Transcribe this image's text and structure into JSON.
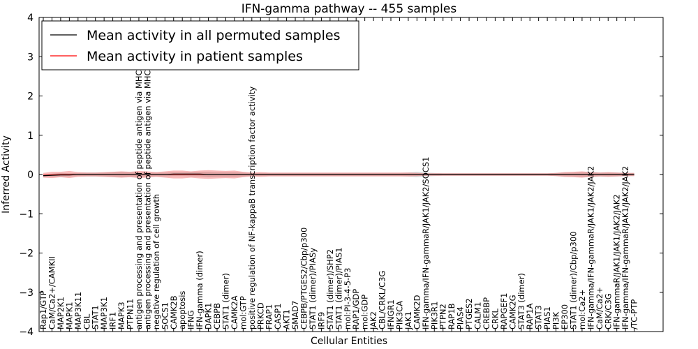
{
  "chart_data": {
    "type": "line",
    "title": "IFN-gamma pathway -- 455 samples",
    "xlabel": "Cellular Entities",
    "ylabel": "Inferred Activity",
    "ylim": [
      -4,
      4
    ],
    "yticks": [
      -4,
      -3,
      -2,
      -1,
      0,
      1,
      2,
      3,
      4
    ],
    "ytick_labels": [
      "−4",
      "−3",
      "−2",
      "−1",
      "0",
      "1",
      "2",
      "3",
      "4"
    ],
    "legend_position": "top-left",
    "categories": [
      "Rap1/GTP",
      "CaM/Ca2+/CAMKII",
      "MAP2K1",
      "MAPK1",
      "MAP3K11",
      "CBL",
      "STAT1",
      "MAP3K1",
      "IRF1",
      "MAPK3",
      "PTPN11",
      "antigen processing and presentation of peptide antigen via MHC class I",
      "antigen processing and presentation of peptide antigen via MHC class II",
      "negative regulation of cell growth",
      "SOCS1",
      "CAMK2B",
      "apoptosis",
      "IFNG",
      "IFN-gamma (dimer)",
      "DAPK1",
      "CEBPB",
      "STAT1 (dimer)",
      "CAMK2A",
      "mol:GTP",
      "positive regulation of NF-kappaB transcription factor activity",
      "PRKCD",
      "FRAP1",
      "CASP1",
      "AKT1",
      "SMAD7",
      "CEBPB/PTGES2/Cbp/p300",
      "STAT1 (dimer)/PIASy",
      "IRF9",
      "STAT1 (dimer)/SHP2",
      "STAT1 (dimer)/PIAS1",
      "mol:PI-3-4-5-P3",
      "RAP1/GDP",
      "mol:GDP",
      "JAK2",
      "CBL/CRKL/C3G",
      "IFNGR1",
      "PIK3CA",
      "JAK1",
      "CAMK2D",
      "IFN-gamma/IFN-gammaR/JAK1/JAK2/SOCS1",
      "PIK3R1",
      "PTPN2",
      "RAP1B",
      "PIAS4",
      "PTGES2",
      "CALM1",
      "CREBBP",
      "CRKL",
      "RAPGEF1",
      "CAMK2G",
      "STAT3 (dimer)",
      "RAP1A",
      "STAT3",
      "PIAS1",
      "PI3K",
      "EP300",
      "STAT1 (dimer)/Cbp/p300",
      "mol:Ca2+",
      "IFN-gamma/IFN-gammaR/JAK1/JAK2/JAK2",
      "CaM/Ca2+",
      "CRK/C3G",
      "IFN-gammaR/JAK1/JAK1/JAK2/JAK2",
      "IFN-gamma/IFN-gammaR/JAK1/JAK2/JAK2",
      "/TC-PTP"
    ],
    "series": [
      {
        "name": "Mean activity in all permuted samples",
        "color": "#000000",
        "values": [
          -0.03,
          -0.02,
          -0.01,
          -0.01,
          0,
          0,
          0,
          0,
          0,
          0,
          0,
          0,
          0,
          0,
          0,
          0.01,
          0.01,
          0.01,
          0.01,
          0,
          0,
          0,
          0,
          0,
          0,
          0,
          0,
          0,
          0,
          0,
          0,
          0,
          0,
          0,
          0,
          0,
          0,
          0,
          0,
          0,
          0,
          0,
          0,
          0,
          0,
          0,
          0,
          0,
          0,
          0,
          0,
          0,
          0,
          0,
          0,
          0,
          0,
          0,
          0,
          0,
          0,
          0,
          0,
          0,
          0,
          0,
          0,
          0,
          0
        ],
        "band": [
          0.03,
          0.04,
          0.05,
          0.04,
          0.04,
          0.05,
          0.05,
          0.05,
          0.06,
          0.07,
          0.06,
          0.06,
          0.05,
          0.05,
          0.05,
          0.05,
          0.05,
          0.06,
          0.06,
          0.07,
          0.06,
          0.06,
          0.06,
          0.05,
          0.04,
          0.04,
          0.04,
          0.04,
          0.04,
          0.04,
          0.04,
          0.04,
          0.04,
          0.04,
          0.04,
          0.04,
          0.04,
          0.04,
          0.04,
          0.04,
          0.04,
          0.04,
          0.05,
          0.07,
          0.05,
          0.04,
          0.03,
          0.03,
          0.03,
          0.03,
          0.03,
          0.03,
          0.03,
          0.03,
          0.03,
          0.03,
          0.03,
          0.03,
          0.03,
          0.04,
          0.05,
          0.05,
          0.06,
          0.06,
          0.05,
          0.05,
          0.05,
          0.04,
          0.04
        ]
      },
      {
        "name": "Mean activity in patient samples",
        "color": "#ff0000",
        "values": [
          -0.02,
          -0.01,
          0,
          0,
          0,
          0,
          0,
          0,
          0,
          0,
          0,
          0,
          0,
          0,
          0,
          0,
          0,
          0,
          0,
          0,
          0,
          0,
          0,
          0,
          0,
          0,
          0,
          0,
          0,
          0,
          0,
          0,
          0,
          0,
          0,
          0,
          0,
          0,
          0,
          0,
          0,
          0,
          0,
          0,
          0,
          0,
          0,
          0,
          0,
          0,
          0,
          0,
          0,
          0,
          0,
          0,
          0,
          0,
          0,
          0,
          0,
          0,
          0,
          0,
          0,
          0,
          0,
          0,
          0
        ],
        "band": [
          0.06,
          0.08,
          0.07,
          0.09,
          0.06,
          0.05,
          0.05,
          0.06,
          0.07,
          0.08,
          0.07,
          0.09,
          0.08,
          0.06,
          0.08,
          0.1,
          0.1,
          0.08,
          0.1,
          0.11,
          0.1,
          0.09,
          0.1,
          0.07,
          0.05,
          0.06,
          0.05,
          0.05,
          0.05,
          0.05,
          0.05,
          0.05,
          0.05,
          0.05,
          0.05,
          0.05,
          0.05,
          0.05,
          0.05,
          0.05,
          0.05,
          0.05,
          0.05,
          0.04,
          0.03,
          0.03,
          0.03,
          0.03,
          0.03,
          0.03,
          0.03,
          0.03,
          0.03,
          0.03,
          0.03,
          0.03,
          0.03,
          0.03,
          0.03,
          0.04,
          0.06,
          0.07,
          0.08,
          0.06,
          0.05,
          0.06,
          0.05,
          0.04,
          0.04
        ]
      }
    ]
  }
}
